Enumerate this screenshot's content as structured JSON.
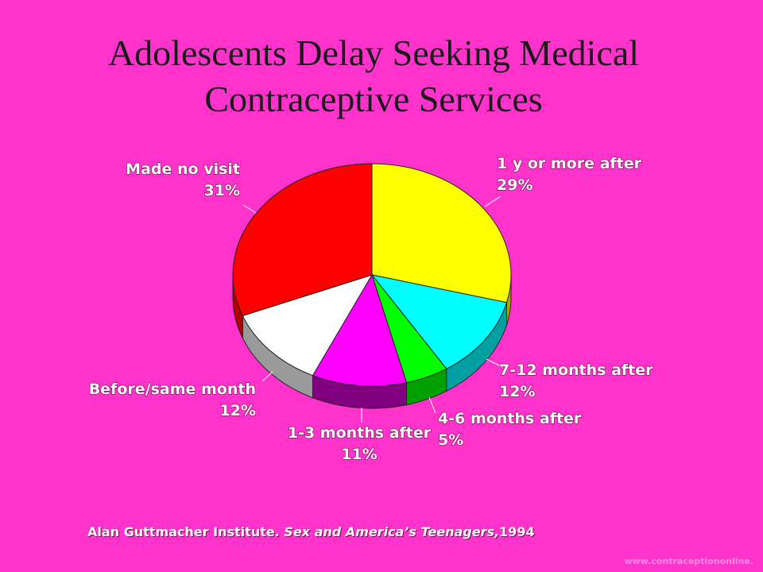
{
  "slide": {
    "title_line1": "Adolescents Delay Seeking Medical",
    "title_line2": "Contraceptive Services",
    "source_author": "Alan Guttmacher Institute. ",
    "source_book": "Sex and America’s Teenagers,",
    "source_year": "1994",
    "watermark": "www.contraceptiononline."
  },
  "chart_data": {
    "type": "pie",
    "title": "Adolescents Delay Seeking Medical Contraceptive Services",
    "slices": [
      {
        "label": "1 y or more after",
        "value": 29,
        "value_label": "29%",
        "color": "#FFFF00",
        "side_color": "#A8A800"
      },
      {
        "label": "7-12 months after",
        "value": 12,
        "value_label": "12%",
        "color": "#00FFFF",
        "side_color": "#00A0A0"
      },
      {
        "label": "4-6 months after",
        "value": 5,
        "value_label": "5%",
        "color": "#00FF00",
        "side_color": "#00A000"
      },
      {
        "label": "1-3 months after",
        "value": 11,
        "value_label": "11%",
        "color": "#FF00FF",
        "side_color": "#800080"
      },
      {
        "label": "Before/same month",
        "value": 12,
        "value_label": "12%",
        "color": "#FFFFFF",
        "side_color": "#9A9A9A"
      },
      {
        "label": "Made no visit",
        "value": 31,
        "value_label": "31%",
        "color": "#FF0000",
        "side_color": "#B00000"
      }
    ],
    "start_angle_deg": 0,
    "direction": "clockwise",
    "legend": "none",
    "style": "3d"
  }
}
